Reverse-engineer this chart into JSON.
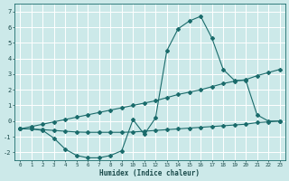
{
  "xlabel": "Humidex (Indice chaleur)",
  "background_color": "#cce9e9",
  "grid_color": "#ffffff",
  "line_color": "#1a6b6b",
  "xlim": [
    -0.5,
    23.5
  ],
  "ylim": [
    -2.5,
    7.5
  ],
  "xticks": [
    0,
    1,
    2,
    3,
    4,
    5,
    6,
    7,
    8,
    9,
    10,
    11,
    12,
    13,
    14,
    15,
    16,
    17,
    18,
    19,
    20,
    21,
    22,
    23
  ],
  "yticks": [
    -2,
    -1,
    0,
    1,
    2,
    3,
    4,
    5,
    6,
    7
  ],
  "x_data": [
    0,
    1,
    2,
    3,
    4,
    5,
    6,
    7,
    8,
    9,
    10,
    11,
    12,
    13,
    14,
    15,
    16,
    17,
    18,
    19,
    20,
    21,
    22,
    23
  ],
  "line1_y": [
    -0.5,
    -0.5,
    -0.6,
    -1.1,
    -1.8,
    -2.2,
    -2.35,
    -2.35,
    -2.2,
    -1.9,
    0.1,
    -0.85,
    0.2,
    4.5,
    5.9,
    6.4,
    6.7,
    5.3,
    3.3,
    2.6,
    2.6,
    0.4,
    0.0,
    0.0
  ],
  "line2_y": [
    -0.5,
    -0.35,
    -0.2,
    -0.05,
    0.1,
    0.25,
    0.4,
    0.55,
    0.7,
    0.85,
    1.0,
    1.15,
    1.3,
    1.5,
    1.7,
    1.85,
    2.0,
    2.2,
    2.4,
    2.55,
    2.65,
    2.9,
    3.1,
    3.3
  ],
  "line3_y": [
    -0.5,
    -0.5,
    -0.55,
    -0.6,
    -0.65,
    -0.7,
    -0.72,
    -0.72,
    -0.72,
    -0.72,
    -0.7,
    -0.65,
    -0.6,
    -0.55,
    -0.5,
    -0.45,
    -0.4,
    -0.35,
    -0.3,
    -0.25,
    -0.2,
    -0.1,
    -0.05,
    0.0
  ]
}
